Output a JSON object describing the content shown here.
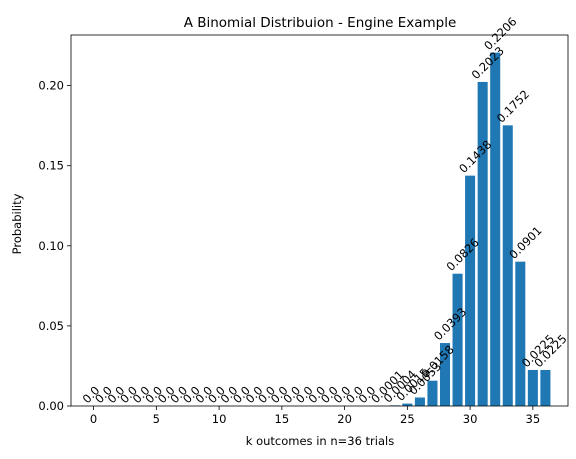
{
  "chart_data": {
    "type": "bar",
    "title": "A Binomial Distribuion - Engine Example",
    "xlabel": "k outcomes in n=36 trials",
    "ylabel": "Probability",
    "bar_color": "#1f77b4",
    "x": [
      0,
      1,
      2,
      3,
      4,
      5,
      6,
      7,
      8,
      9,
      10,
      11,
      12,
      13,
      14,
      15,
      16,
      17,
      18,
      19,
      20,
      21,
      22,
      23,
      24,
      25,
      26,
      27,
      28,
      29,
      30,
      31,
      32,
      33,
      34,
      35,
      36
    ],
    "values": [
      0.0,
      0.0,
      0.0,
      0.0,
      0.0,
      0.0,
      0.0,
      0.0,
      0.0,
      0.0,
      0.0,
      0.0,
      0.0,
      0.0,
      0.0,
      0.0,
      0.0,
      0.0,
      0.0,
      0.0,
      0.0,
      0.0,
      0.0,
      0.0001,
      0.0004,
      0.0015,
      0.0053,
      0.0158,
      0.0393,
      0.0826,
      0.1438,
      0.2023,
      0.2206,
      0.1752,
      0.0901,
      0.0225,
      0.0225
    ],
    "labels": [
      "0.0",
      "0.0",
      "0.0",
      "0.0",
      "0.0",
      "0.0",
      "0.0",
      "0.0",
      "0.0",
      "0.0",
      "0.0",
      "0.0",
      "0.0",
      "0.0",
      "0.0",
      "0.0",
      "0.0",
      "0.0",
      "0.0",
      "0.0",
      "0.0",
      "0.0",
      "0.0",
      "0.0001",
      "0.0004",
      "0.0015",
      "0.0053",
      "0.0158",
      "0.0393",
      "0.0826",
      "0.1438",
      "0.2023",
      "0.2206",
      "0.1752",
      "0.0901",
      "0.0225",
      "0.0225"
    ],
    "xticks": [
      0,
      5,
      10,
      15,
      20,
      25,
      30,
      35
    ],
    "yticks": [
      "0.00",
      "0.05",
      "0.10",
      "0.15",
      "0.20"
    ],
    "ytick_values": [
      0.0,
      0.05,
      0.1,
      0.15,
      0.2
    ],
    "xlim": [
      -1.8,
      37.8
    ],
    "ylim": [
      0,
      0.2316
    ],
    "grid": false
  }
}
